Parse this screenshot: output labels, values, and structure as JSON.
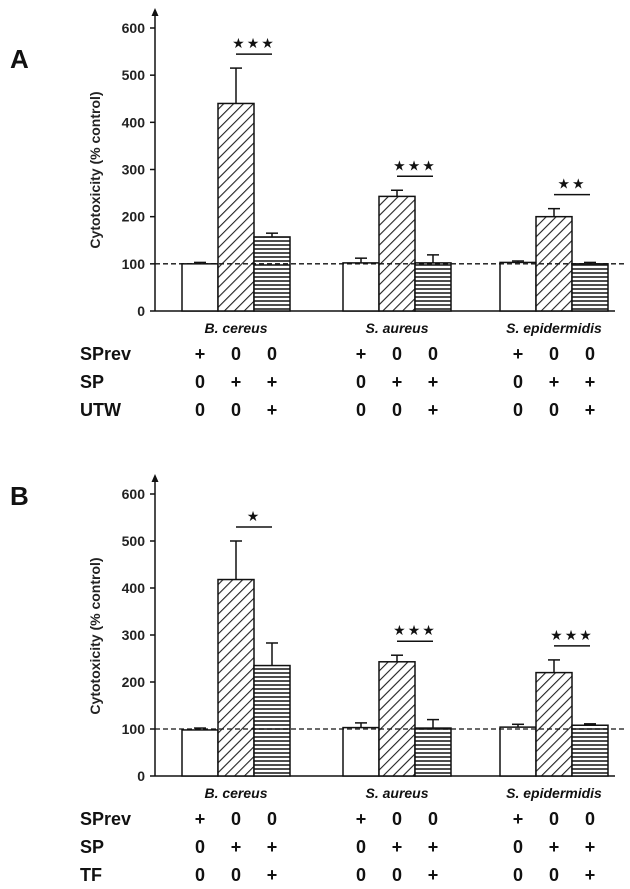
{
  "chart_data": [
    {
      "type": "bar",
      "panel_label": "A",
      "ylabel": "Cytotoxicity (% control)",
      "ylim": [
        0,
        600
      ],
      "yticks": [
        0,
        100,
        200,
        300,
        400,
        500,
        600
      ],
      "reference_line": 100,
      "groups": [
        "B. cereus",
        "S. aureus",
        "S. epidermidis"
      ],
      "bars": [
        {
          "group": 0,
          "fill": "open",
          "value": 100,
          "error": 3
        },
        {
          "group": 0,
          "fill": "diagonal",
          "value": 440,
          "error": 75
        },
        {
          "group": 0,
          "fill": "horizontal",
          "value": 157,
          "error": 8
        },
        {
          "group": 1,
          "fill": "open",
          "value": 102,
          "error": 10
        },
        {
          "group": 1,
          "fill": "diagonal",
          "value": 243,
          "error": 13
        },
        {
          "group": 1,
          "fill": "horizontal",
          "value": 102,
          "error": 17
        },
        {
          "group": 2,
          "fill": "open",
          "value": 103,
          "error": 3
        },
        {
          "group": 2,
          "fill": "diagonal",
          "value": 200,
          "error": 17
        },
        {
          "group": 2,
          "fill": "horizontal",
          "value": 100,
          "error": 3
        }
      ],
      "significance": [
        {
          "group": 0,
          "stars": "★★★"
        },
        {
          "group": 1,
          "stars": "★★★"
        },
        {
          "group": 2,
          "stars": "★★"
        }
      ],
      "condition_rows": [
        {
          "label": "SPrev",
          "values": [
            "+",
            "0",
            "0",
            "+",
            "0",
            "0",
            "+",
            "0",
            "0"
          ]
        },
        {
          "label": "SP",
          "values": [
            "0",
            "+",
            "+",
            "0",
            "+",
            "+",
            "0",
            "+",
            "+"
          ]
        },
        {
          "label": "UTW",
          "values": [
            "0",
            "0",
            "+",
            "0",
            "0",
            "+",
            "0",
            "0",
            "+"
          ]
        }
      ]
    },
    {
      "type": "bar",
      "panel_label": "B",
      "ylabel": "Cytotoxicity (% control)",
      "ylim": [
        0,
        600
      ],
      "yticks": [
        0,
        100,
        200,
        300,
        400,
        500,
        600
      ],
      "reference_line": 100,
      "groups": [
        "B. cereus",
        "S. aureus",
        "S. epidermidis"
      ],
      "bars": [
        {
          "group": 0,
          "fill": "open",
          "value": 98,
          "error": 4
        },
        {
          "group": 0,
          "fill": "diagonal",
          "value": 418,
          "error": 82
        },
        {
          "group": 0,
          "fill": "horizontal",
          "value": 235,
          "error": 48
        },
        {
          "group": 1,
          "fill": "open",
          "value": 103,
          "error": 10
        },
        {
          "group": 1,
          "fill": "diagonal",
          "value": 243,
          "error": 14
        },
        {
          "group": 1,
          "fill": "horizontal",
          "value": 102,
          "error": 18
        },
        {
          "group": 2,
          "fill": "open",
          "value": 104,
          "error": 6
        },
        {
          "group": 2,
          "fill": "diagonal",
          "value": 220,
          "error": 27
        },
        {
          "group": 2,
          "fill": "horizontal",
          "value": 108,
          "error": 3
        }
      ],
      "significance": [
        {
          "group": 0,
          "stars": "★"
        },
        {
          "group": 1,
          "stars": "★★★"
        },
        {
          "group": 2,
          "stars": "★★★"
        }
      ],
      "condition_rows": [
        {
          "label": "SPrev",
          "values": [
            "+",
            "0",
            "0",
            "+",
            "0",
            "0",
            "+",
            "0",
            "0"
          ]
        },
        {
          "label": "SP",
          "values": [
            "0",
            "+",
            "+",
            "0",
            "+",
            "+",
            "0",
            "+",
            "+"
          ]
        },
        {
          "label": "TF",
          "values": [
            "0",
            "0",
            "+",
            "0",
            "0",
            "+",
            "0",
            "0",
            "+"
          ]
        }
      ]
    }
  ]
}
